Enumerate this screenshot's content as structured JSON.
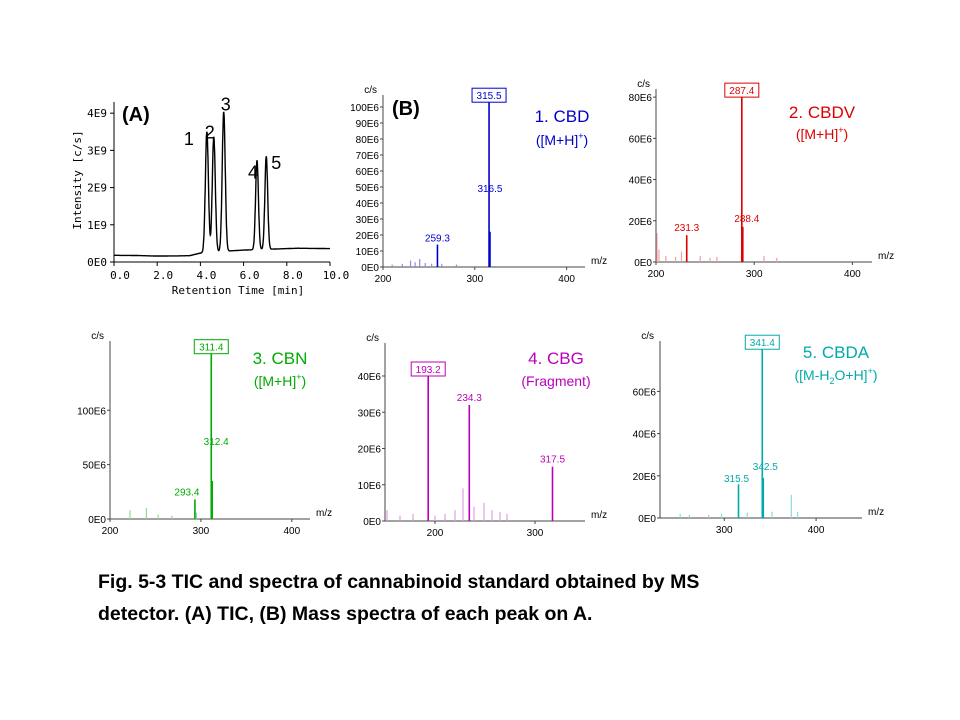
{
  "figure": {
    "caption_line1": "Fig. 5-3  TIC and spectra of cannabinoid standard obtained by MS",
    "caption_line2": "detector. (A) TIC, (B) Mass spectra of each peak on A.",
    "panel_a_label": "(A)",
    "panel_b_label": "(B)"
  },
  "chart_data": [
    {
      "id": "tic",
      "type": "line",
      "xlabel": "Retention  Time [min]",
      "ylabel": "Intensity [c/s]",
      "xlim": [
        0,
        10
      ],
      "ylim": [
        0,
        4300000000.0
      ],
      "xticks": [
        0,
        2,
        4,
        6,
        8,
        10
      ],
      "xtick_labels": [
        "0.0",
        "2.0",
        "4.0",
        "6.0",
        "8.0",
        "10.0"
      ],
      "yticks": [
        0,
        1000000000.0,
        2000000000.0,
        3000000000.0,
        4000000000.0
      ],
      "ytick_labels": [
        "0E0",
        "1E9",
        "2E9",
        "3E9",
        "4E9"
      ],
      "color": "#000000",
      "baseline": [
        [
          0,
          180000000.0
        ],
        [
          1,
          175000000.0
        ],
        [
          2,
          160000000.0
        ],
        [
          3,
          165000000.0
        ],
        [
          3.5,
          170000000.0
        ],
        [
          4.0,
          240000000.0
        ],
        [
          5.4,
          300000000.0
        ],
        [
          6.0,
          320000000.0
        ],
        [
          7.5,
          350000000.0
        ],
        [
          8.5,
          370000000.0
        ],
        [
          10,
          360000000.0
        ]
      ],
      "peaks": [
        {
          "label": "1",
          "rt": 4.3,
          "height": 3250000000.0,
          "width": 0.07
        },
        {
          "label": "2",
          "rt": 4.62,
          "height": 3100000000.0,
          "width": 0.07
        },
        {
          "label": "3",
          "rt": 5.08,
          "height": 3750000000.0,
          "width": 0.07
        },
        {
          "label": "4",
          "rt": 6.62,
          "height": 2400000000.0,
          "width": 0.065
        },
        {
          "label": "5",
          "rt": 7.05,
          "height": 2500000000.0,
          "width": 0.065
        }
      ]
    },
    {
      "id": "cbd",
      "type": "bar",
      "title": "1. CBD",
      "subtitle_main": "([M+H]",
      "subtitle_sup": "+",
      "subtitle_end": ")",
      "color": "#0000cc",
      "light_color": "#8c8ce6",
      "y_axis_label": "c/s",
      "x_axis_label": "m/z",
      "xlim": [
        200,
        420
      ],
      "ylim": [
        0,
        105000000.0
      ],
      "xticks": [
        200,
        300,
        400
      ],
      "xtick_labels": [
        "200",
        "300",
        "400"
      ],
      "yticks": [
        0,
        10000000.0,
        20000000.0,
        30000000.0,
        40000000.0,
        50000000.0,
        60000000.0,
        70000000.0,
        80000000.0,
        90000000.0,
        100000000.0
      ],
      "ytick_labels": [
        "0E0",
        "10E6",
        "20E6",
        "30E6",
        "40E6",
        "50E6",
        "60E6",
        "70E6",
        "80E6",
        "90E6",
        "100E6"
      ],
      "labeled_peaks": [
        {
          "mz": 315.5,
          "value": 103000000.0,
          "label": "315.5",
          "boxed": true
        },
        {
          "mz": 316.5,
          "value": 22000000.0,
          "label": "316.5",
          "boxed": false
        },
        {
          "mz": 259.3,
          "value": 14000000.0,
          "label": "259.3",
          "boxed": false
        }
      ],
      "minor_peaks": [
        [
          210,
          1500000.0
        ],
        [
          221,
          2000000.0
        ],
        [
          230,
          4000000.0
        ],
        [
          235,
          3000000.0
        ],
        [
          240,
          5000000.0
        ],
        [
          246,
          2500000.0
        ],
        [
          253,
          2000000.0
        ],
        [
          264,
          2000000.0
        ],
        [
          280,
          1500000.0
        ]
      ]
    },
    {
      "id": "cbdv",
      "type": "bar",
      "title": "2. CBDV",
      "subtitle_main": "([M+H]",
      "subtitle_sup": "+",
      "subtitle_end": ")",
      "color": "#dd0000",
      "light_color": "#f0a0a0",
      "y_axis_label": "c/s",
      "x_axis_label": "m/z",
      "xlim": [
        200,
        420
      ],
      "ylim": [
        0,
        82000000.0
      ],
      "xticks": [
        200,
        300,
        400
      ],
      "xtick_labels": [
        "200",
        "300",
        "400"
      ],
      "yticks": [
        0,
        20000000.0,
        40000000.0,
        60000000.0,
        80000000.0
      ],
      "ytick_labels": [
        "0E0",
        "20E6",
        "40E6",
        "60E6",
        "80E6"
      ],
      "labeled_peaks": [
        {
          "mz": 287.4,
          "value": 80000000.0,
          "label": "287.4",
          "boxed": true
        },
        {
          "mz": 288.4,
          "value": 17000000.0,
          "label": "288.4",
          "boxed": false
        },
        {
          "mz": 231.3,
          "value": 13000000.0,
          "label": "231.3",
          "boxed": false
        }
      ],
      "minor_peaks": [
        [
          201,
          14000000.0
        ],
        [
          203,
          6000000.0
        ],
        [
          210,
          3000000.0
        ],
        [
          220,
          2500000.0
        ],
        [
          226,
          5000000.0
        ],
        [
          245,
          3000000.0
        ],
        [
          255,
          2000000.0
        ],
        [
          262,
          2500000.0
        ],
        [
          310,
          3000000.0
        ],
        [
          323,
          2000000.0
        ]
      ]
    },
    {
      "id": "cbn",
      "type": "bar",
      "title": "3. CBN",
      "subtitle_main": "([M+H]",
      "subtitle_sup": "+",
      "subtitle_end": ")",
      "color": "#00aa00",
      "light_color": "#90d890",
      "y_axis_label": "c/s",
      "x_axis_label": "m/z",
      "xlim": [
        200,
        420
      ],
      "ylim": [
        0,
        160000000.0
      ],
      "xticks": [
        200,
        300,
        400
      ],
      "xtick_labels": [
        "200",
        "300",
        "400"
      ],
      "yticks": [
        0,
        50000000.0,
        100000000.0
      ],
      "ytick_labels": [
        "0E0",
        "50E6",
        "100E6"
      ],
      "labeled_peaks": [
        {
          "mz": 311.4,
          "value": 152000000.0,
          "label": "311.4",
          "boxed": true
        },
        {
          "mz": 312.4,
          "value": 35000000.0,
          "label": "312.4",
          "boxed": false
        },
        {
          "mz": 293.4,
          "value": 18000000.0,
          "label": "293.4",
          "boxed": false
        }
      ],
      "minor_peaks": [
        [
          222,
          8000000.0
        ],
        [
          240,
          10000000.0
        ],
        [
          253,
          4000000.0
        ],
        [
          268,
          3000000.0
        ],
        [
          295,
          6000000.0
        ]
      ]
    },
    {
      "id": "cbg",
      "type": "bar",
      "title": "4. CBG",
      "subtitle_main": "(Fragment)",
      "subtitle_sup": "",
      "subtitle_end": "",
      "color": "#bb00bb",
      "light_color": "#e0a0e0",
      "y_axis_label": "c/s",
      "x_axis_label": "m/z",
      "xlim": [
        150,
        350
      ],
      "ylim": [
        0,
        48000000.0
      ],
      "xticks": [
        200,
        300
      ],
      "xtick_labels": [
        "200",
        "300"
      ],
      "yticks": [
        0,
        10000000.0,
        20000000.0,
        30000000.0,
        40000000.0
      ],
      "ytick_labels": [
        "0E0",
        "10E6",
        "20E6",
        "30E6",
        "40E6"
      ],
      "labeled_peaks": [
        {
          "mz": 193.2,
          "value": 40000000.0,
          "label": "193.2",
          "boxed": true
        },
        {
          "mz": 234.3,
          "value": 32000000.0,
          "label": "234.3",
          "boxed": false
        },
        {
          "mz": 317.5,
          "value": 15000000.0,
          "label": "317.5",
          "boxed": false
        }
      ],
      "minor_peaks": [
        [
          152,
          3000000.0
        ],
        [
          165,
          1500000.0
        ],
        [
          178,
          2000000.0
        ],
        [
          200,
          1500000.0
        ],
        [
          210,
          2000000.0
        ],
        [
          220,
          3000000.0
        ],
        [
          228,
          9000000.0
        ],
        [
          239,
          4000000.0
        ],
        [
          249,
          5000000.0
        ],
        [
          257,
          3000000.0
        ],
        [
          265,
          2500000.0
        ],
        [
          272,
          2000000.0
        ]
      ]
    },
    {
      "id": "cbda",
      "type": "bar",
      "title": "5. CBDA",
      "subtitle_main": "([M-H",
      "subtitle_sub": "2",
      "subtitle_after_sub": "O+H]",
      "subtitle_sup": "+",
      "subtitle_end": ")",
      "color": "#00aaaa",
      "light_color": "#90d8d8",
      "y_axis_label": "c/s",
      "x_axis_label": "m/z",
      "xlim": [
        230,
        450
      ],
      "ylim": [
        0,
        82000000.0
      ],
      "xticks": [
        300,
        400
      ],
      "xtick_labels": [
        "300",
        "400"
      ],
      "yticks": [
        0,
        20000000.0,
        40000000.0,
        60000000.0
      ],
      "ytick_labels": [
        "0E0",
        "20E6",
        "40E6",
        "60E6"
      ],
      "labeled_peaks": [
        {
          "mz": 341.4,
          "value": 80000000.0,
          "label": "341.4",
          "boxed": true
        },
        {
          "mz": 342.5,
          "value": 19000000.0,
          "label": "342.5",
          "boxed": false
        },
        {
          "mz": 315.5,
          "value": 16000000.0,
          "label": "315.5",
          "boxed": false
        }
      ],
      "minor_peaks": [
        [
          252,
          2000000.0
        ],
        [
          262,
          1500000.0
        ],
        [
          283,
          1500000.0
        ],
        [
          297,
          2000000.0
        ],
        [
          325,
          2500000.0
        ],
        [
          352,
          3000000.0
        ],
        [
          373,
          11000000.0
        ],
        [
          380,
          3000000.0
        ]
      ]
    }
  ]
}
